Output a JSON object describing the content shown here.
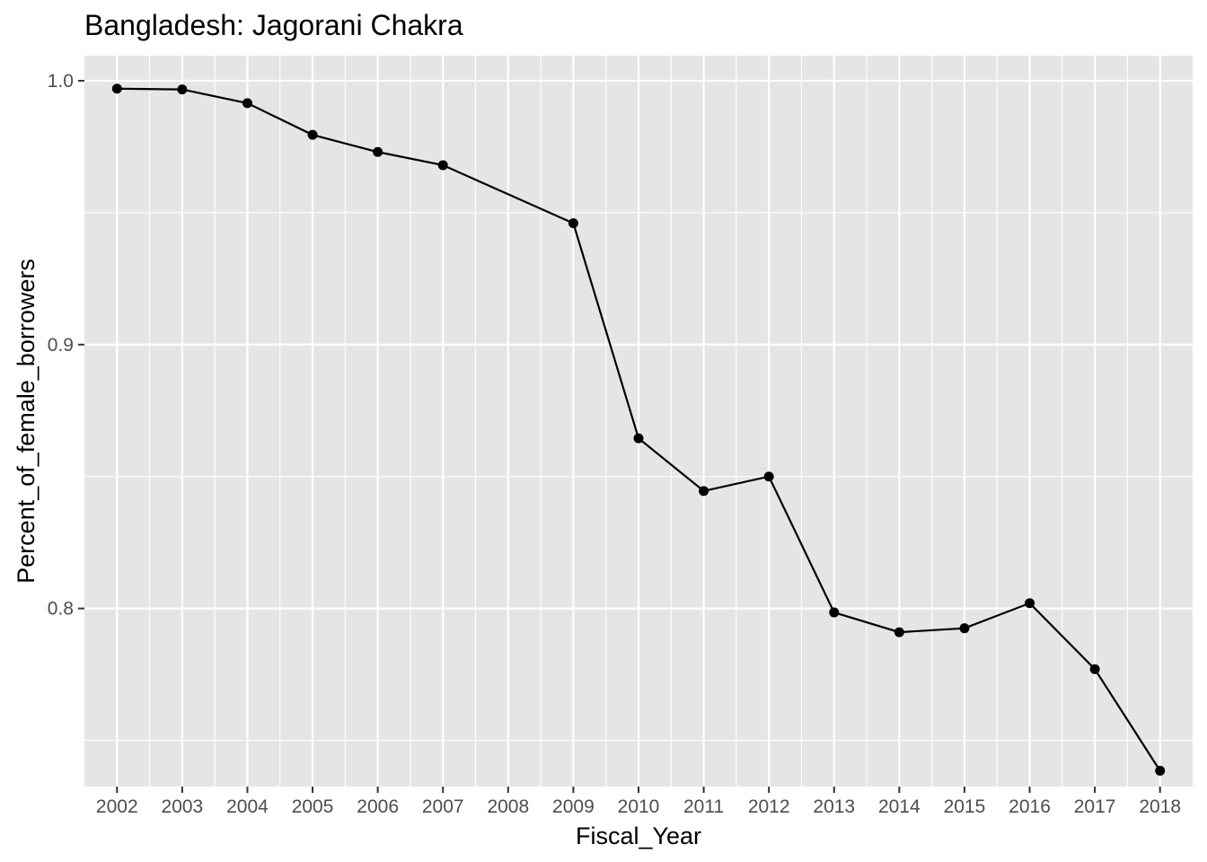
{
  "chart_data": {
    "type": "line",
    "title": "Bangladesh:  Jagorani Chakra",
    "xlabel": "Fiscal_Year",
    "ylabel": "Percent_of_female_borrowers",
    "x_tick_labels": [
      "2002",
      "2003",
      "2004",
      "2005",
      "2006",
      "2007",
      "2008",
      "2009",
      "2010",
      "2011",
      "2012",
      "2013",
      "2014",
      "2015",
      "2016",
      "2017",
      "2018"
    ],
    "y_tick_labels": [
      "0.8",
      "0.9",
      "1.0"
    ],
    "x": [
      2002,
      2003,
      2004,
      2005,
      2006,
      2007,
      2009,
      2010,
      2011,
      2012,
      2013,
      2014,
      2015,
      2016,
      2017,
      2018
    ],
    "y": [
      0.997,
      0.9967,
      0.9915,
      0.9795,
      0.973,
      0.968,
      0.946,
      0.8645,
      0.8445,
      0.85,
      0.7985,
      0.791,
      0.7925,
      0.802,
      0.777,
      0.7385
    ],
    "xlim": [
      2001.5,
      2018.5
    ],
    "ylim": [
      0.7325,
      1.0095
    ],
    "y_ticks": [
      0.8,
      0.9,
      1.0
    ],
    "y_minor_ticks": [
      0.75,
      0.85,
      0.95
    ],
    "grid": true,
    "panel_background": "#e5e5e5",
    "grid_color": "#ffffff",
    "line_color": "#000000",
    "point_color": "#000000"
  }
}
